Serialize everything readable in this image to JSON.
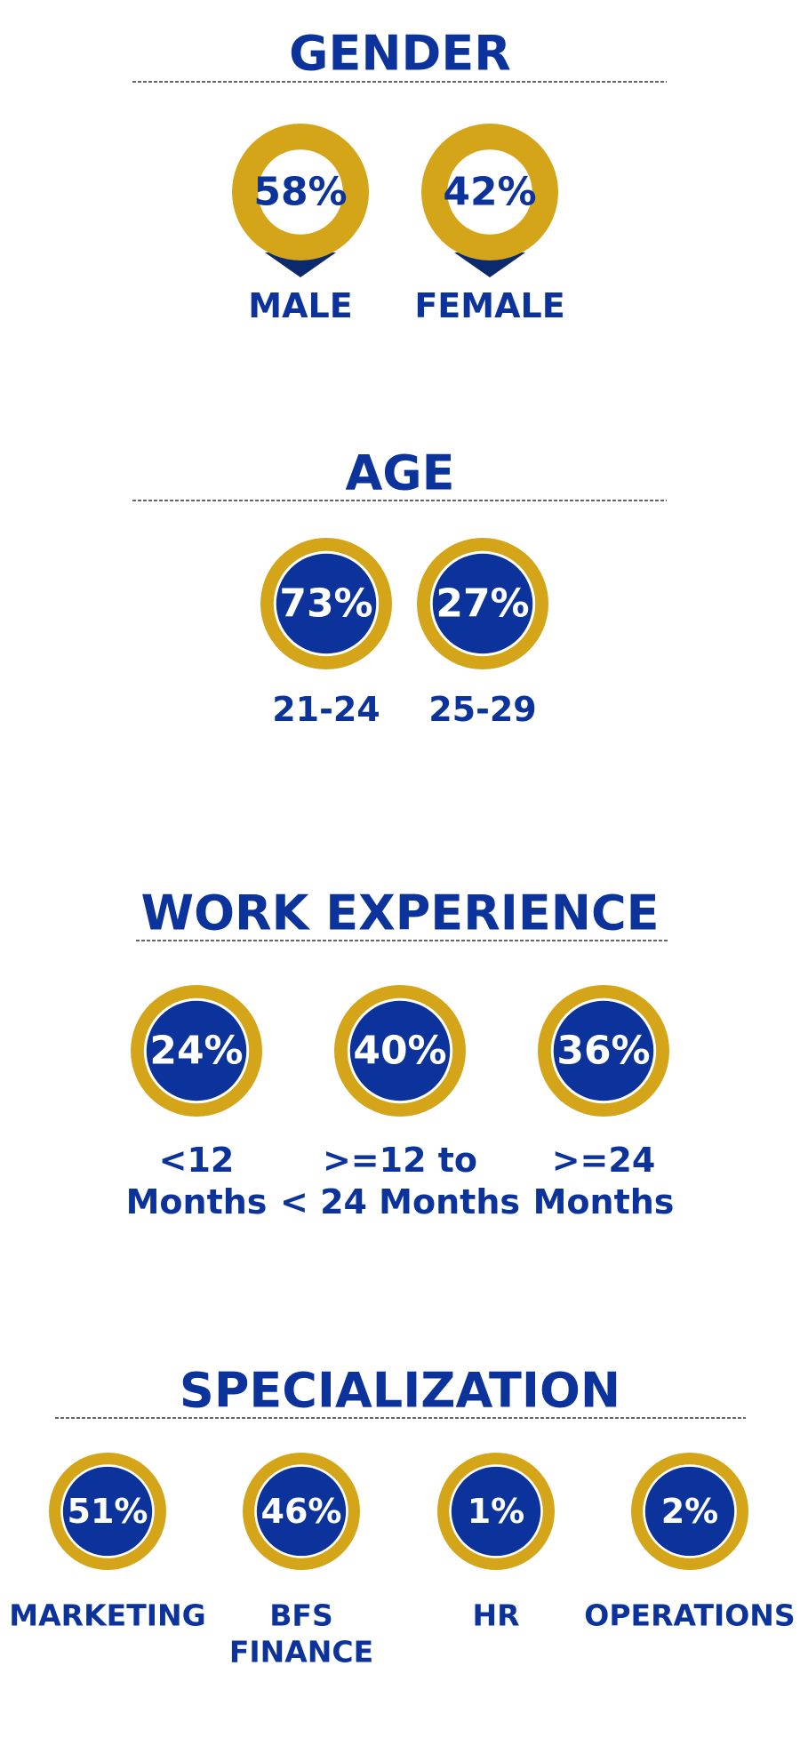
{
  "sections": [
    {
      "title": "GENDER",
      "items": [
        {
          "percent": "58%",
          "label": [
            "MALE"
          ]
        },
        {
          "percent": "42%",
          "label": [
            "FEMALE"
          ]
        }
      ]
    },
    {
      "title": "AGE",
      "items": [
        {
          "percent": "73%",
          "label": [
            "21-24"
          ]
        },
        {
          "percent": "27%",
          "label": [
            "25-29"
          ]
        }
      ]
    },
    {
      "title": "WORK EXPERIENCE",
      "items": [
        {
          "percent": "24%",
          "label": [
            "<12",
            "Months"
          ]
        },
        {
          "percent": "40%",
          "label": [
            ">=12 to",
            "< 24 Months"
          ]
        },
        {
          "percent": "36%",
          "label": [
            ">=24",
            "Months"
          ]
        }
      ]
    },
    {
      "title": "SPECIALIZATION",
      "items": [
        {
          "percent": "51%",
          "label": [
            "MARKETING"
          ]
        },
        {
          "percent": "46%",
          "label": [
            "BFS",
            "FINANCE"
          ]
        },
        {
          "percent": "1%",
          "label": [
            "HR"
          ]
        },
        {
          "percent": "2%",
          "label": [
            "OPERATIONS"
          ]
        }
      ]
    }
  ]
}
